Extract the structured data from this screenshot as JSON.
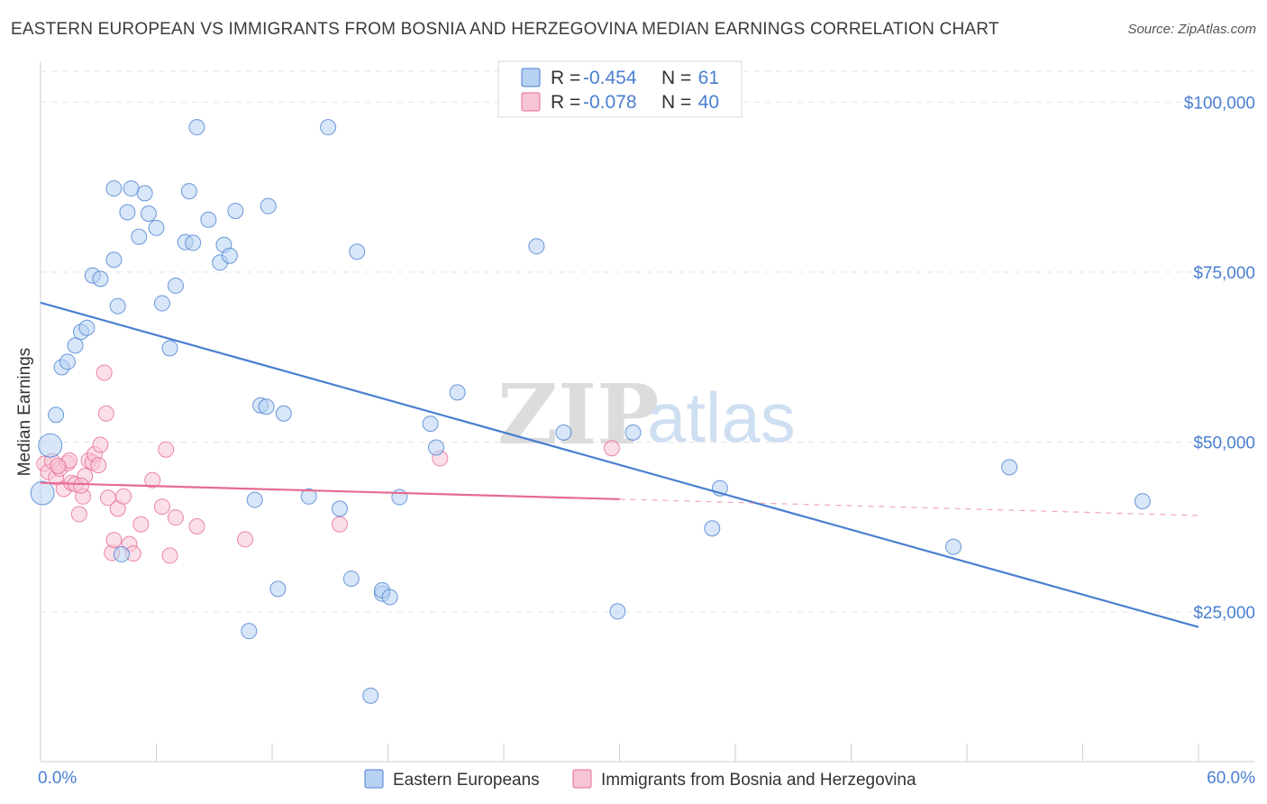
{
  "header": {
    "title": "EASTERN EUROPEAN VS IMMIGRANTS FROM BOSNIA AND HERZEGOVINA MEDIAN EARNINGS CORRELATION CHART",
    "source": "Source: ZipAtlas.com"
  },
  "watermark": {
    "zip": "ZIP",
    "atlas": "atlas"
  },
  "stats": [
    {
      "r_label": "R =",
      "r_value": "-0.454",
      "n_label": "N =",
      "n_value": "61",
      "color": "#4a7fd1"
    },
    {
      "r_label": "R =",
      "r_value": "-0.078",
      "n_label": "N =",
      "n_value": "40",
      "color": "#e66b93"
    }
  ],
  "chart_data": {
    "type": "scatter",
    "title": "EASTERN EUROPEAN VS IMMIGRANTS FROM BOSNIA AND HERZEGOVINA MEDIAN EARNINGS CORRELATION CHART",
    "xlabel": "",
    "ylabel": "Median Earnings",
    "xlim": [
      0,
      60
    ],
    "ylim": [
      3000,
      106000
    ],
    "x_tick_labels": [
      "0.0%",
      "60.0%"
    ],
    "y_ticks": [
      {
        "value": 25000,
        "label": "$25,000"
      },
      {
        "value": 50000,
        "label": "$50,000"
      },
      {
        "value": 75000,
        "label": "$75,000"
      },
      {
        "value": 100000,
        "label": "$100,000"
      }
    ],
    "grid": true,
    "legend_position": "bottom-center",
    "series": [
      {
        "name": "Eastern Europeans",
        "color": "#4a7fd1",
        "fill": "#b7d1f2",
        "trend": {
          "x0": 0,
          "y0": 70500,
          "x1": 60,
          "y1": 22800,
          "solid_to": 60
        },
        "points": [
          {
            "x": 0.1,
            "y": 42500,
            "big": true
          },
          {
            "x": 0.5,
            "y": 49500,
            "big": true
          },
          {
            "x": 0.8,
            "y": 54000
          },
          {
            "x": 1.1,
            "y": 61000
          },
          {
            "x": 1.4,
            "y": 61800
          },
          {
            "x": 1.8,
            "y": 64200
          },
          {
            "x": 2.1,
            "y": 66200
          },
          {
            "x": 2.4,
            "y": 66800
          },
          {
            "x": 2.7,
            "y": 74500
          },
          {
            "x": 3.1,
            "y": 74000
          },
          {
            "x": 3.8,
            "y": 87300
          },
          {
            "x": 3.8,
            "y": 76800
          },
          {
            "x": 4.0,
            "y": 70000
          },
          {
            "x": 4.5,
            "y": 83800
          },
          {
            "x": 4.7,
            "y": 87300
          },
          {
            "x": 5.1,
            "y": 80200
          },
          {
            "x": 5.4,
            "y": 86600
          },
          {
            "x": 5.6,
            "y": 83600
          },
          {
            "x": 6.0,
            "y": 81500
          },
          {
            "x": 6.3,
            "y": 70400
          },
          {
            "x": 6.7,
            "y": 63800
          },
          {
            "x": 7.0,
            "y": 73000
          },
          {
            "x": 7.5,
            "y": 79400
          },
          {
            "x": 7.7,
            "y": 86900
          },
          {
            "x": 7.9,
            "y": 79300
          },
          {
            "x": 8.1,
            "y": 96300
          },
          {
            "x": 8.7,
            "y": 82700
          },
          {
            "x": 9.3,
            "y": 76400
          },
          {
            "x": 9.5,
            "y": 79000
          },
          {
            "x": 9.8,
            "y": 77400
          },
          {
            "x": 10.1,
            "y": 84000
          },
          {
            "x": 10.8,
            "y": 22200
          },
          {
            "x": 11.1,
            "y": 41500
          },
          {
            "x": 11.4,
            "y": 55400
          },
          {
            "x": 11.7,
            "y": 55200
          },
          {
            "x": 11.8,
            "y": 84700
          },
          {
            "x": 12.3,
            "y": 28400
          },
          {
            "x": 12.6,
            "y": 54200
          },
          {
            "x": 13.9,
            "y": 42000
          },
          {
            "x": 14.9,
            "y": 96300
          },
          {
            "x": 15.5,
            "y": 40200
          },
          {
            "x": 16.1,
            "y": 29900
          },
          {
            "x": 16.4,
            "y": 78000
          },
          {
            "x": 17.1,
            "y": 12700
          },
          {
            "x": 17.7,
            "y": 27700
          },
          {
            "x": 17.7,
            "y": 28200
          },
          {
            "x": 18.1,
            "y": 27200
          },
          {
            "x": 18.6,
            "y": 41900
          },
          {
            "x": 20.2,
            "y": 52700
          },
          {
            "x": 20.5,
            "y": 49200
          },
          {
            "x": 21.6,
            "y": 57300
          },
          {
            "x": 25.7,
            "y": 78800
          },
          {
            "x": 27.1,
            "y": 51400
          },
          {
            "x": 29.9,
            "y": 25100
          },
          {
            "x": 30.7,
            "y": 51400
          },
          {
            "x": 34.8,
            "y": 37300
          },
          {
            "x": 35.2,
            "y": 43200
          },
          {
            "x": 47.3,
            "y": 34600
          },
          {
            "x": 50.2,
            "y": 46300
          },
          {
            "x": 57.1,
            "y": 41300
          },
          {
            "x": 4.2,
            "y": 33500
          }
        ]
      },
      {
        "name": "Immigrants from Bosnia and Herzegovina",
        "color": "#e66b93",
        "fill": "#f7c4d3",
        "trend": {
          "x0": 0,
          "y0": 44000,
          "x1": 60,
          "y1": 39200,
          "solid_to": 30
        },
        "points": [
          {
            "x": 0.2,
            "y": 46800
          },
          {
            "x": 0.4,
            "y": 45600
          },
          {
            "x": 0.6,
            "y": 47200
          },
          {
            "x": 0.8,
            "y": 44800
          },
          {
            "x": 1.0,
            "y": 46100
          },
          {
            "x": 1.2,
            "y": 43100
          },
          {
            "x": 1.4,
            "y": 46900
          },
          {
            "x": 1.6,
            "y": 44000
          },
          {
            "x": 1.8,
            "y": 43800
          },
          {
            "x": 2.0,
            "y": 39400
          },
          {
            "x": 2.2,
            "y": 42000
          },
          {
            "x": 2.3,
            "y": 45000
          },
          {
            "x": 2.5,
            "y": 47300
          },
          {
            "x": 2.7,
            "y": 47000
          },
          {
            "x": 2.8,
            "y": 48200
          },
          {
            "x": 3.0,
            "y": 46600
          },
          {
            "x": 3.1,
            "y": 49600
          },
          {
            "x": 3.3,
            "y": 60200
          },
          {
            "x": 3.4,
            "y": 54200
          },
          {
            "x": 3.5,
            "y": 41800
          },
          {
            "x": 3.7,
            "y": 33700
          },
          {
            "x": 3.8,
            "y": 35600
          },
          {
            "x": 4.0,
            "y": 40200
          },
          {
            "x": 4.3,
            "y": 42000
          },
          {
            "x": 4.6,
            "y": 35000
          },
          {
            "x": 4.8,
            "y": 33600
          },
          {
            "x": 5.2,
            "y": 37900
          },
          {
            "x": 5.8,
            "y": 44400
          },
          {
            "x": 6.3,
            "y": 40500
          },
          {
            "x": 6.5,
            "y": 48900
          },
          {
            "x": 6.7,
            "y": 33300
          },
          {
            "x": 7.0,
            "y": 38900
          },
          {
            "x": 8.1,
            "y": 37600
          },
          {
            "x": 10.6,
            "y": 35700
          },
          {
            "x": 15.5,
            "y": 37900
          },
          {
            "x": 20.7,
            "y": 47600
          },
          {
            "x": 29.6,
            "y": 49100
          },
          {
            "x": 1.5,
            "y": 47300
          },
          {
            "x": 0.9,
            "y": 46500
          },
          {
            "x": 2.1,
            "y": 43600
          }
        ]
      }
    ]
  },
  "legend": {
    "items": [
      {
        "label": "Eastern Europeans",
        "color": "#4a7fd1",
        "fill": "#b7d1f2"
      },
      {
        "label": "Immigrants from Bosnia and Herzegovina",
        "color": "#e66b93",
        "fill": "#f7c4d3"
      }
    ]
  }
}
